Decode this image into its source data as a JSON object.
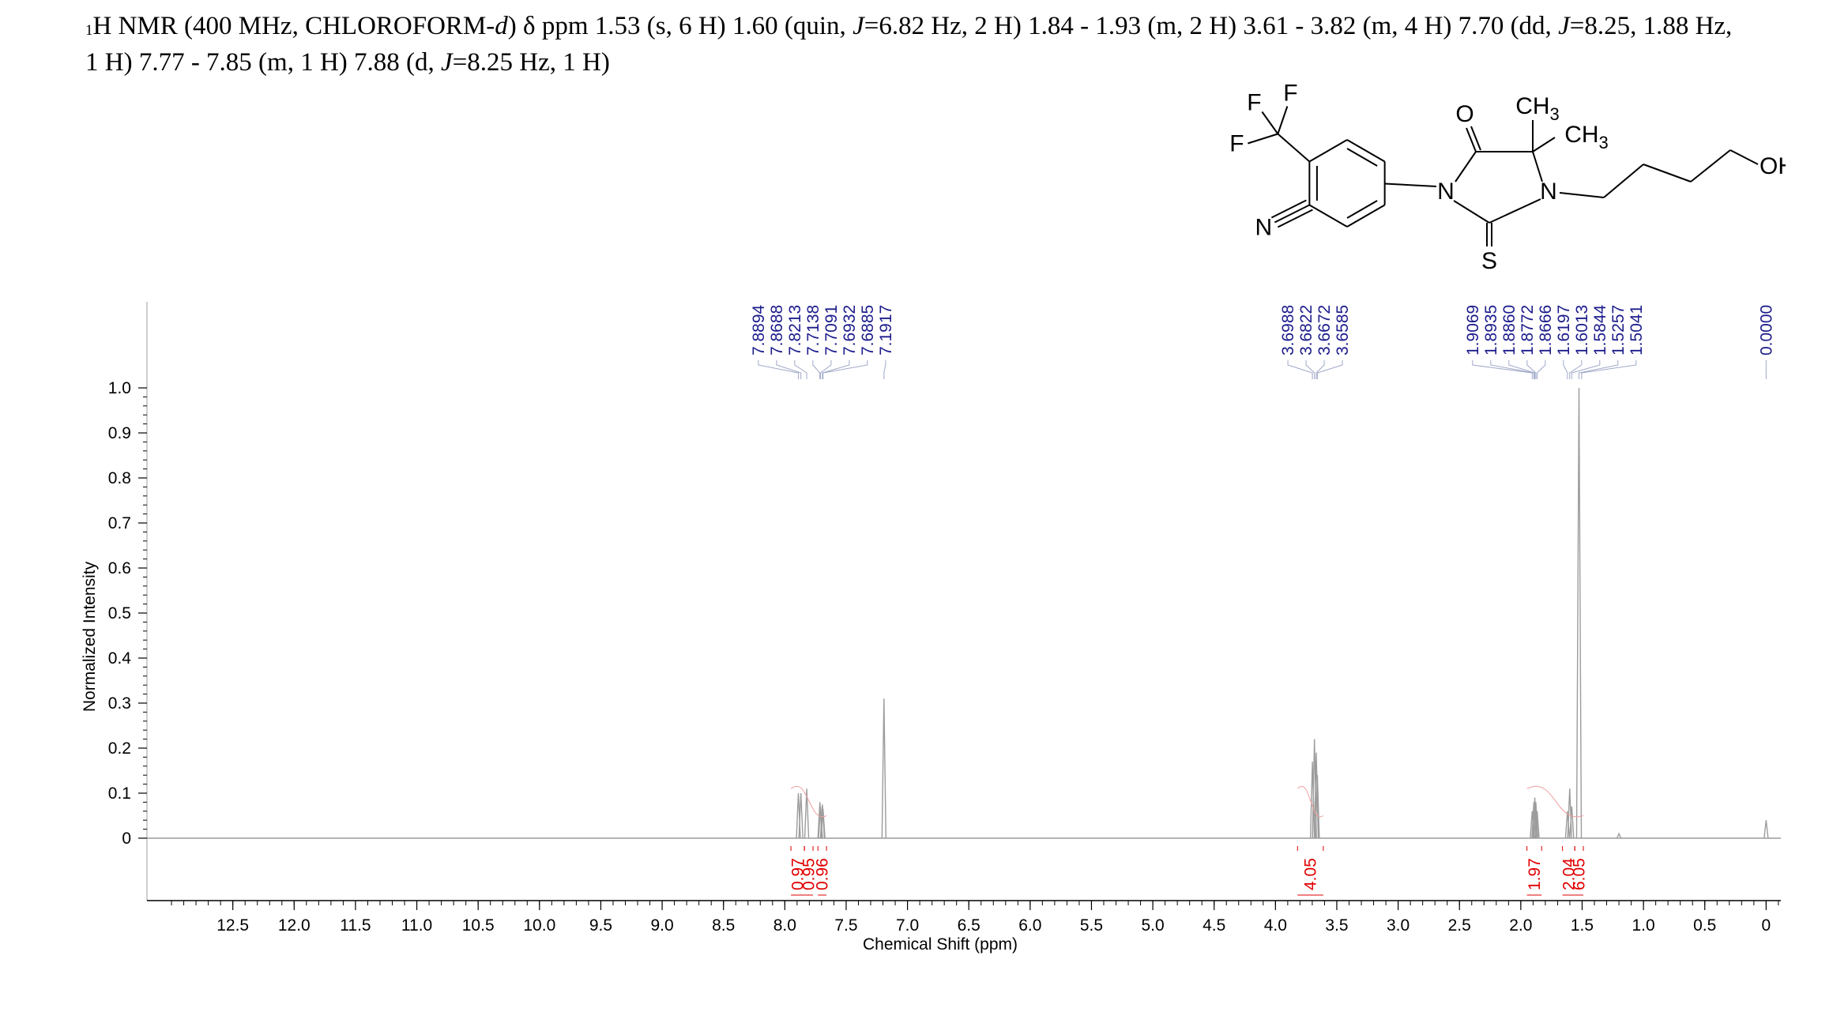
{
  "header": {
    "mass_superscript": "1",
    "title_lines": [
      [
        "H NMR (400 MHz, CHLOROFORM-",
        {
          "i": "d"
        },
        ") δ ppm 1.53 (s, 6 H) 1.60 (quin, ",
        {
          "i": "J"
        },
        "=6.82 Hz, 2 H) 1.84 - 1.93 (m, 2 H) 3.61 - 3.82 (m, 4 H) 7.70 (dd, ",
        {
          "i": "J"
        },
        "=8.25, 1.88 Hz,"
      ],
      [
        "1 H) 7.77 - 7.85 (m, 1 H) 7.88 (d, ",
        {
          "i": "J"
        },
        "=8.25 Hz, 1 H)"
      ]
    ]
  },
  "molecule": {
    "atoms": [
      "F",
      "F",
      "F",
      "O",
      "CH3",
      "CH3",
      "N",
      "N",
      "OH",
      "N",
      "S"
    ]
  },
  "chart_data": {
    "type": "line",
    "title": "",
    "xlabel": "Chemical Shift (ppm)",
    "ylabel": "Normalized Intensity",
    "xlim": [
      13.2,
      -0.12
    ],
    "ylim": [
      -0.14,
      1.2
    ],
    "x_ticks": [
      "12.5",
      "12.0",
      "11.5",
      "11.0",
      "10.5",
      "10.0",
      "9.5",
      "9.0",
      "8.5",
      "8.0",
      "7.5",
      "7.0",
      "6.5",
      "6.0",
      "5.5",
      "5.0",
      "4.5",
      "4.0",
      "3.5",
      "3.0",
      "2.5",
      "2.0",
      "1.5",
      "1.0",
      "0.5",
      "0"
    ],
    "y_ticks": [
      "0",
      "0.1",
      "0.2",
      "0.3",
      "0.4",
      "0.5",
      "0.6",
      "0.7",
      "0.8",
      "0.9",
      "1.0"
    ],
    "peaks": [
      {
        "ppm": 7.8894,
        "height": 0.1
      },
      {
        "ppm": 7.8688,
        "height": 0.1
      },
      {
        "ppm": 7.8213,
        "height": 0.11
      },
      {
        "ppm": 7.7138,
        "height": 0.08
      },
      {
        "ppm": 7.7091,
        "height": 0.07
      },
      {
        "ppm": 7.6932,
        "height": 0.075
      },
      {
        "ppm": 7.6885,
        "height": 0.065
      },
      {
        "ppm": 7.1917,
        "height": 0.31
      },
      {
        "ppm": 3.6988,
        "height": 0.17
      },
      {
        "ppm": 3.6822,
        "height": 0.22
      },
      {
        "ppm": 3.6672,
        "height": 0.19
      },
      {
        "ppm": 3.6585,
        "height": 0.14
      },
      {
        "ppm": 1.9069,
        "height": 0.06
      },
      {
        "ppm": 1.8935,
        "height": 0.08
      },
      {
        "ppm": 1.886,
        "height": 0.09
      },
      {
        "ppm": 1.8772,
        "height": 0.08
      },
      {
        "ppm": 1.8666,
        "height": 0.06
      },
      {
        "ppm": 1.6197,
        "height": 0.06
      },
      {
        "ppm": 1.6013,
        "height": 0.11
      },
      {
        "ppm": 1.5844,
        "height": 0.07
      },
      {
        "ppm": 1.5257,
        "height": 1.0
      },
      {
        "ppm": 1.2,
        "height": 0.01
      },
      {
        "ppm": 0.0,
        "height": 0.04
      }
    ],
    "peak_label_groups": [
      {
        "labels": [
          "7.8894",
          "7.8688",
          "7.8213",
          "7.7138",
          "7.7091",
          "7.6932",
          "7.6885",
          "7.1917"
        ]
      },
      {
        "labels": [
          "3.6988",
          "3.6822",
          "3.6672",
          "3.6585"
        ]
      },
      {
        "labels": [
          "1.9069",
          "1.8935",
          "1.8860",
          "1.8772",
          "1.8666",
          "1.6197",
          "1.6013",
          "1.5844",
          "1.5257",
          "1.5041"
        ]
      },
      {
        "labels": [
          "0.0000"
        ]
      }
    ],
    "integrals": [
      {
        "value": "0.97",
        "from": 7.95,
        "to": 7.84
      },
      {
        "value": "0.95",
        "from": 7.84,
        "to": 7.77
      },
      {
        "value": "0.96",
        "from": 7.73,
        "to": 7.66
      },
      {
        "value": "4.05",
        "from": 3.82,
        "to": 3.61
      },
      {
        "value": "1.97",
        "from": 1.95,
        "to": 1.83
      },
      {
        "value": "2.04",
        "from": 1.66,
        "to": 1.56
      },
      {
        "value": "6.05",
        "from": 1.56,
        "to": 1.49
      }
    ],
    "colors": {
      "spectrum": "#9c9c9c",
      "peak_labels": "#1c1c8c",
      "integrals": "#e00000",
      "axis": "#000000"
    }
  }
}
